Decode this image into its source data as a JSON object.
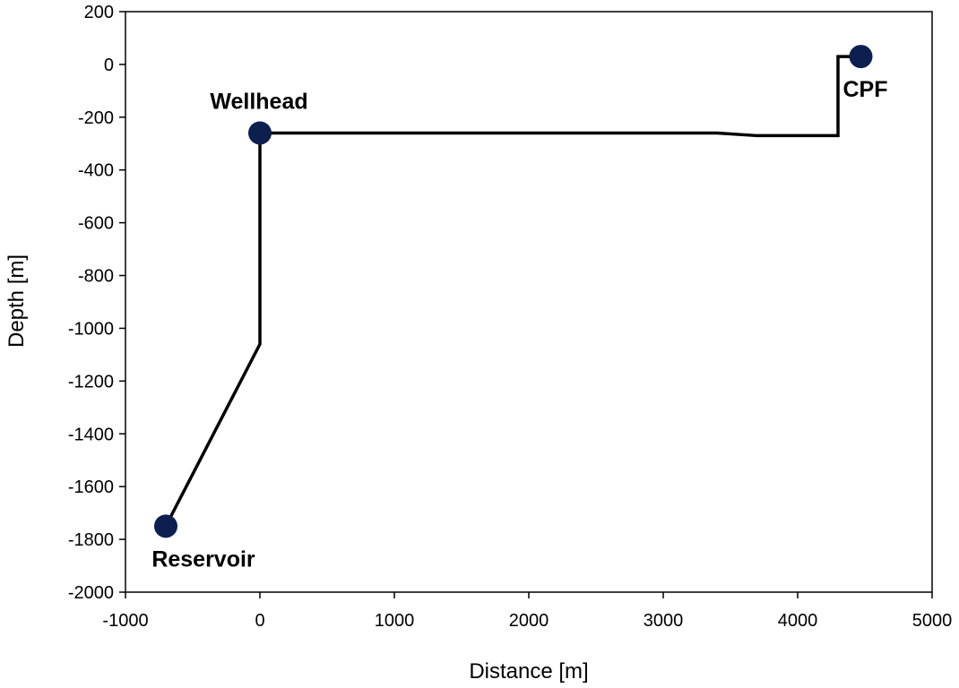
{
  "chart_data": {
    "type": "line",
    "title": "",
    "xlabel": "Distance [m]",
    "ylabel": "Depth [m]",
    "xlim": [
      -1000,
      5000
    ],
    "ylim": [
      -2000,
      200
    ],
    "x_ticks": [
      -1000,
      0,
      1000,
      2000,
      3000,
      4000,
      5000
    ],
    "y_ticks": [
      200,
      0,
      -200,
      -400,
      -600,
      -800,
      -1000,
      -1200,
      -1400,
      -1600,
      -1800,
      -2000
    ],
    "x_tick_labels": [
      "-1000",
      "0",
      "1000",
      "2000",
      "3000",
      "4000",
      "5000"
    ],
    "y_tick_labels": [
      "200",
      "0",
      "-200",
      "-400",
      "-600",
      "-800",
      "-1000",
      "-1200",
      "-1400",
      "-1600",
      "-1800",
      "-2000"
    ],
    "grid": false,
    "line_color": "#000000",
    "marker_color": "#0d1f4f",
    "series": [
      {
        "x": [
          -700,
          0,
          0,
          3400,
          3700,
          4300,
          4300,
          4470
        ],
        "y": [
          -1750,
          -1060,
          -260,
          -260,
          -270,
          -270,
          30,
          30
        ]
      }
    ],
    "points": [
      {
        "label": "Reservoir",
        "x": -700,
        "y": -1750,
        "label_position": "below"
      },
      {
        "label": "Wellhead",
        "x": 0,
        "y": -260,
        "label_position": "above"
      },
      {
        "label": "CPF",
        "x": 4470,
        "y": 30,
        "label_position": "below"
      }
    ]
  }
}
